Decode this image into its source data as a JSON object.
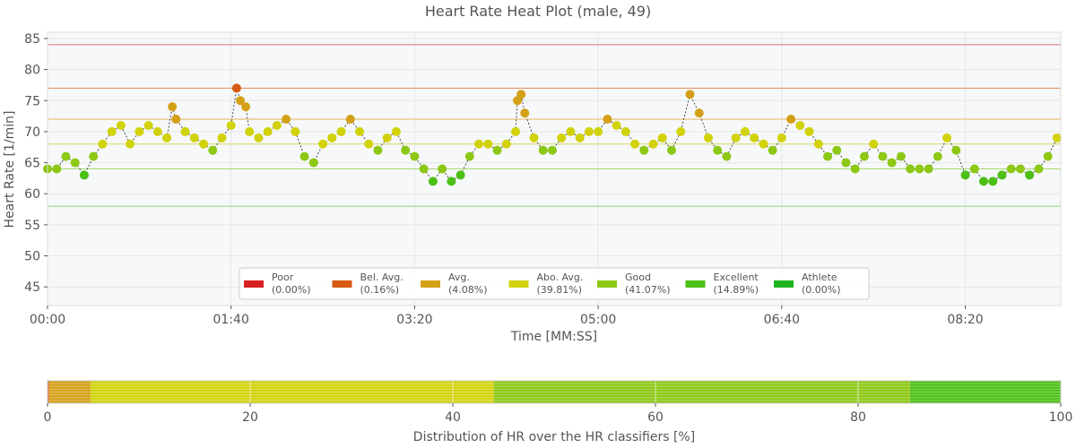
{
  "chart_data": [
    {
      "type": "scatter",
      "title": "Heart Rate Heat Plot (male, 49)",
      "xlabel": "Time [MM:SS]",
      "ylabel": "Heart Rate [1/min]",
      "xlim": [
        0,
        552
      ],
      "ylim": [
        42,
        86
      ],
      "x_tick_values": [
        0,
        100,
        200,
        300,
        400,
        500
      ],
      "x_tick_labels": [
        "00:00",
        "01:40",
        "03:20",
        "05:00",
        "06:40",
        "08:20"
      ],
      "y_tick_values": [
        45,
        50,
        55,
        60,
        65,
        70,
        75,
        80,
        85
      ],
      "y_tick_labels": [
        "45",
        "50",
        "55",
        "60",
        "65",
        "70",
        "75",
        "80",
        "85"
      ],
      "grid": true,
      "threshold_lines": [
        {
          "value": 84,
          "color": "#e07070"
        },
        {
          "value": 77,
          "color": "#e3875a"
        },
        {
          "value": 72,
          "color": "#e6b55a"
        },
        {
          "value": 68,
          "color": "#d8d860"
        },
        {
          "value": 64,
          "color": "#a8d870"
        },
        {
          "value": 58,
          "color": "#8ad870"
        }
      ],
      "classes": [
        {
          "min": 84,
          "color": "#d62020"
        },
        {
          "min": 77,
          "color": "#d65a14"
        },
        {
          "min": 72,
          "color": "#d4a017"
        },
        {
          "min": 68,
          "color": "#d2d20a"
        },
        {
          "min": 64,
          "color": "#8cc814"
        },
        {
          "min": 58,
          "color": "#4cbf14"
        },
        {
          "min": 0,
          "color": "#1fb41f"
        }
      ],
      "legend_position": "bottom-center",
      "legend": [
        {
          "label": "Poor",
          "pct": "(0.00%)",
          "color": "#d62020"
        },
        {
          "label": "Bel. Avg.",
          "pct": "(0.16%)",
          "color": "#d65a14"
        },
        {
          "label": "Avg.",
          "pct": "(4.08%)",
          "color": "#d4a017"
        },
        {
          "label": "Abo. Avg.",
          "pct": "(39.81%)",
          "color": "#d2d20a"
        },
        {
          "label": "Good",
          "pct": "(41.07%)",
          "color": "#8cc814"
        },
        {
          "label": "Excellent",
          "pct": "(14.89%)",
          "color": "#4cbf14"
        },
        {
          "label": "Athlete",
          "pct": "(0.00%)",
          "color": "#1fb41f"
        }
      ],
      "x": [
        0,
        5,
        10,
        15,
        20,
        25,
        30,
        35,
        40,
        45,
        50,
        55,
        60,
        65,
        68,
        70,
        75,
        80,
        85,
        90,
        95,
        100,
        103,
        105,
        108,
        110,
        115,
        120,
        125,
        130,
        135,
        140,
        145,
        150,
        155,
        160,
        165,
        170,
        175,
        180,
        185,
        190,
        195,
        200,
        205,
        210,
        215,
        220,
        225,
        230,
        235,
        240,
        245,
        250,
        255,
        256,
        258,
        260,
        265,
        270,
        275,
        280,
        285,
        290,
        295,
        300,
        305,
        310,
        315,
        320,
        325,
        330,
        335,
        340,
        345,
        350,
        355,
        360,
        365,
        370,
        375,
        380,
        385,
        390,
        395,
        400,
        405,
        410,
        415,
        420,
        425,
        430,
        435,
        440,
        445,
        450,
        455,
        460,
        465,
        470,
        475,
        480,
        485,
        490,
        495,
        500,
        505,
        510,
        515,
        520,
        525,
        530,
        535,
        540,
        545,
        550
      ],
      "y": [
        64,
        64,
        66,
        65,
        63,
        66,
        68,
        70,
        71,
        68,
        70,
        71,
        70,
        69,
        74,
        72,
        70,
        69,
        68,
        67,
        69,
        71,
        77,
        75,
        74,
        70,
        69,
        70,
        71,
        72,
        70,
        66,
        65,
        68,
        69,
        70,
        72,
        70,
        68,
        67,
        69,
        70,
        67,
        66,
        64,
        62,
        64,
        62,
        63,
        66,
        68,
        68,
        67,
        68,
        70,
        75,
        76,
        73,
        69,
        67,
        67,
        69,
        70,
        69,
        70,
        70,
        72,
        71,
        70,
        68,
        67,
        68,
        69,
        67,
        70,
        76,
        73,
        69,
        67,
        66,
        69,
        70,
        69,
        68,
        67,
        69,
        72,
        71,
        70,
        68,
        66,
        67,
        65,
        64,
        66,
        68,
        66,
        65,
        66,
        64,
        64,
        64,
        66,
        69,
        67,
        63,
        64,
        62,
        62,
        63,
        64,
        64,
        63,
        64,
        66,
        69
      ],
      "series": [
        {
          "name": "Heart Rate",
          "values": []
        }
      ]
    },
    {
      "type": "bar",
      "orientation": "horizontal",
      "xlabel": "Distribution of HR over the HR classifiers [%]",
      "xlim": [
        0,
        100
      ],
      "x_tick_values": [
        0,
        20,
        40,
        60,
        80,
        100
      ],
      "x_tick_labels": [
        "0",
        "20",
        "40",
        "60",
        "80",
        "100"
      ],
      "grid": true,
      "segments": [
        {
          "value": 0.16,
          "color": "#d65a14"
        },
        {
          "value": 4.08,
          "color": "#d4a017"
        },
        {
          "value": 39.81,
          "color": "#d2d20a"
        },
        {
          "value": 41.07,
          "color": "#8cc814"
        },
        {
          "value": 14.89,
          "color": "#4cbf14"
        }
      ]
    }
  ]
}
